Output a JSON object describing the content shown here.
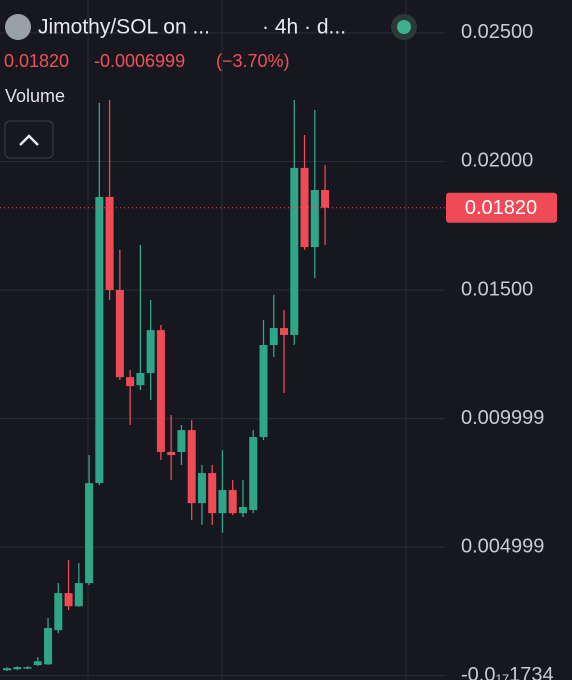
{
  "chart_data": {
    "type": "candlestick",
    "title": "Jimothy/SOL on ...",
    "interval": "· 4h · d...",
    "last": "0.01820",
    "change": "-0.0006999",
    "change_pct": "(−3.70%)",
    "indicator": "Volume",
    "up_color": "#2fa58a",
    "down_color": "#ef4a56",
    "ylim": [
      -0.00017,
      0.02628
    ],
    "yticks": [
      {
        "value": 0.025,
        "label": "0.02500"
      },
      {
        "value": 0.02,
        "label": "0.02000"
      },
      {
        "value": 0.015,
        "label": "0.01500"
      },
      0.009999,
      0.004999,
      {
        "value": -1.734e-18,
        "label": "-0.0₁₇1734"
      }
    ],
    "grid": true,
    "last_price": {
      "value": 0.0182,
      "label": "0.01820"
    },
    "open": [
      0.00021,
      0.00025,
      0.00029,
      0.00041,
      0.00044,
      0.00177,
      0.00321,
      0.0027,
      0.0036,
      0.00749,
      0.01862,
      0.015,
      0.01161,
      0.0113,
      0.01177,
      0.01344,
      0.0087,
      0.0087,
      0.00955,
      0.00671,
      0.00788,
      0.00632,
      0.00722,
      0.00632,
      0.00644,
      0.00928,
      0.01286,
      0.01352,
      0.01325,
      0.01975,
      0.01667,
      0.01889
    ],
    "high": [
      0.00033,
      0.00037,
      0.00037,
      0.00072,
      0.00224,
      0.0036,
      0.00449,
      0.00438,
      0.00858,
      0.02228,
      0.02239,
      0.01656,
      0.01189,
      0.01675,
      0.01461,
      0.01364,
      0.01014,
      0.00975,
      0.00994,
      0.00819,
      0.00819,
      0.00877,
      0.00761,
      0.00761,
      0.00955,
      0.01383,
      0.01481,
      0.01422,
      0.02239,
      0.02103,
      0.022,
      0.01986
    ],
    "low": [
      0.00018,
      0.00021,
      0.00025,
      0.00037,
      0.00041,
      0.00165,
      0.00255,
      0.00267,
      0.00352,
      0.00741,
      0.01461,
      0.0115,
      0.00975,
      0.01111,
      0.01072,
      0.00839,
      0.00761,
      0.00819,
      0.00605,
      0.00586,
      0.00586,
      0.00555,
      0.00625,
      0.00617,
      0.00632,
      0.00916,
      0.01239,
      0.01099,
      0.01286,
      0.01656,
      0.01547,
      0.01675
    ],
    "close": [
      0.00029,
      0.00033,
      0.00033,
      0.00056,
      0.00185,
      0.00321,
      0.0027,
      0.0036,
      0.00749,
      0.01862,
      0.015,
      0.01161,
      0.01126,
      0.01177,
      0.01344,
      0.0087,
      0.00858,
      0.00955,
      0.00671,
      0.00788,
      0.00632,
      0.00722,
      0.00632,
      0.00656,
      0.00928,
      0.01286,
      0.01352,
      0.01325,
      0.01975,
      0.01667,
      0.01889,
      0.0182
    ]
  }
}
